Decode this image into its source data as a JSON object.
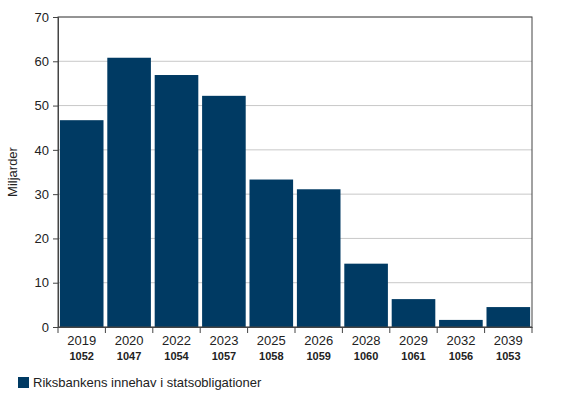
{
  "chart_data": {
    "type": "bar",
    "y_label": "Miljarder",
    "categories": [
      [
        "2019",
        "1052"
      ],
      [
        "2020",
        "1047"
      ],
      [
        "2022",
        "1054"
      ],
      [
        "2023",
        "1057"
      ],
      [
        "2025",
        "1058"
      ],
      [
        "2026",
        "1059"
      ],
      [
        "2028",
        "1060"
      ],
      [
        "2029",
        "1061"
      ],
      [
        "2032",
        "1056"
      ],
      [
        "2039",
        "1053"
      ]
    ],
    "series": [
      {
        "name": "Riksbankens innehav i statsobligationer",
        "color": "#003a63",
        "values": [
          46.7,
          60.8,
          56.9,
          52.2,
          33.3,
          31.1,
          14.3,
          6.3,
          1.6,
          4.5
        ]
      }
    ],
    "ylim": [
      0,
      70
    ],
    "yticks": [
      0,
      10,
      20,
      30,
      40,
      50,
      60,
      70
    ],
    "grid": true,
    "legend": "bottom-left"
  }
}
